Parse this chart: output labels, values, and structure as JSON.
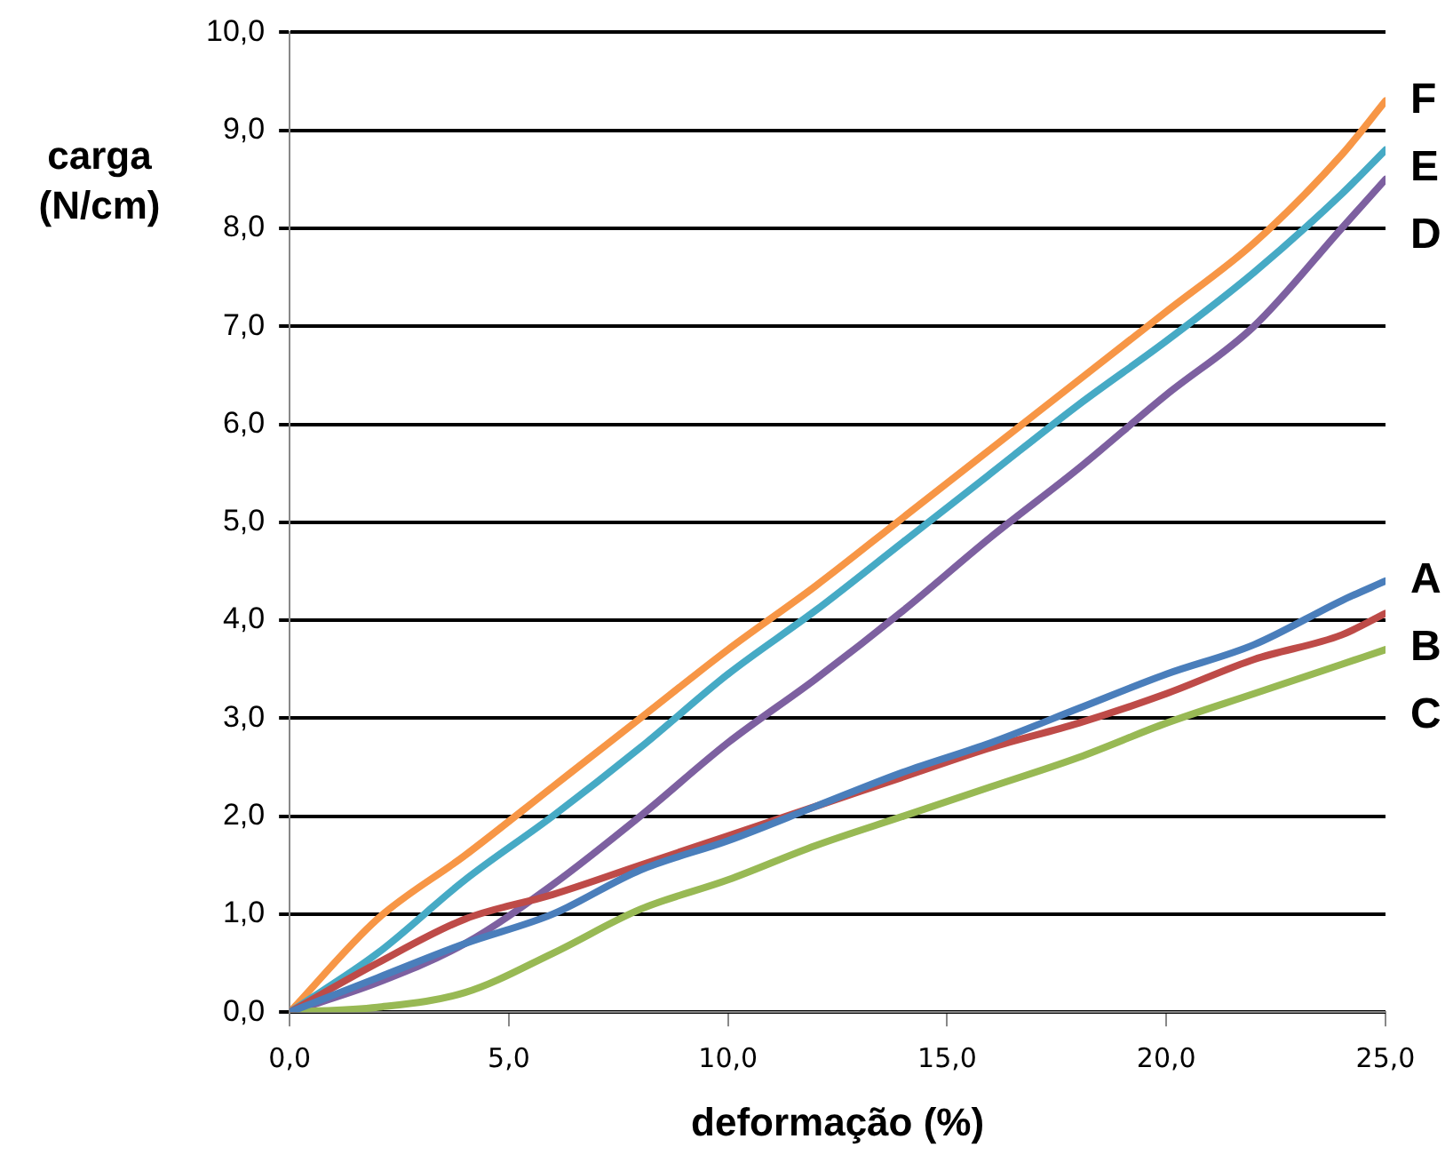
{
  "chart_data": {
    "type": "line",
    "xlabel": "deformação (%)",
    "ylabel": "carga (N/cm)",
    "x": [
      0,
      2,
      4,
      6,
      8,
      10,
      12,
      14,
      16,
      18,
      20,
      22,
      24,
      25
    ],
    "series": [
      {
        "name": "A",
        "color": "#4a7ebb",
        "values": [
          0,
          0.35,
          0.7,
          1.0,
          1.45,
          1.75,
          2.1,
          2.45,
          2.75,
          3.1,
          3.45,
          3.75,
          4.2,
          4.4
        ]
      },
      {
        "name": "B",
        "color": "#be4b48",
        "values": [
          0,
          0.5,
          0.95,
          1.2,
          1.5,
          1.8,
          2.1,
          2.4,
          2.7,
          2.95,
          3.25,
          3.6,
          3.85,
          4.07
        ]
      },
      {
        "name": "C",
        "color": "#98b954",
        "values": [
          0,
          0.05,
          0.2,
          0.6,
          1.05,
          1.35,
          1.7,
          2.0,
          2.3,
          2.6,
          2.95,
          3.25,
          3.55,
          3.7
        ]
      },
      {
        "name": "D",
        "color": "#7d60a0",
        "values": [
          0,
          0.3,
          0.7,
          1.3,
          2.0,
          2.75,
          3.4,
          4.1,
          4.85,
          5.55,
          6.3,
          7.0,
          8.0,
          8.5
        ]
      },
      {
        "name": "E",
        "color": "#46aac5",
        "values": [
          0,
          0.6,
          1.35,
          2.0,
          2.7,
          3.45,
          4.1,
          4.8,
          5.5,
          6.2,
          6.85,
          7.55,
          8.35,
          8.8
        ]
      },
      {
        "name": "F",
        "color": "#f79646",
        "values": [
          0,
          0.95,
          1.6,
          2.3,
          3.0,
          3.7,
          4.35,
          5.05,
          5.75,
          6.45,
          7.15,
          7.85,
          8.75,
          9.3
        ]
      }
    ],
    "xlim": [
      0,
      25
    ],
    "xticks": [
      {
        "value": 0,
        "label": "0,0"
      },
      {
        "value": 5,
        "label": "5,0"
      },
      {
        "value": 10,
        "label": "10,0"
      },
      {
        "value": 15,
        "label": "15,0"
      },
      {
        "value": 20,
        "label": "20,0"
      },
      {
        "value": 25,
        "label": "25,0"
      }
    ],
    "ylim": [
      0,
      10
    ],
    "yticks": [
      {
        "value": 0,
        "label": "0,0"
      },
      {
        "value": 1,
        "label": "1,0"
      },
      {
        "value": 2,
        "label": "2,0"
      },
      {
        "value": 3,
        "label": "3,0"
      },
      {
        "value": 4,
        "label": "4,0"
      },
      {
        "value": 5,
        "label": "5,0"
      },
      {
        "value": 6,
        "label": "6,0"
      },
      {
        "value": 7,
        "label": "7,0"
      },
      {
        "value": 8,
        "label": "8,0"
      },
      {
        "value": 9,
        "label": "9,0"
      },
      {
        "value": 10,
        "label": "10,0"
      }
    ],
    "grid": "y",
    "legend": false,
    "marker": "none",
    "line_style": "solid"
  }
}
